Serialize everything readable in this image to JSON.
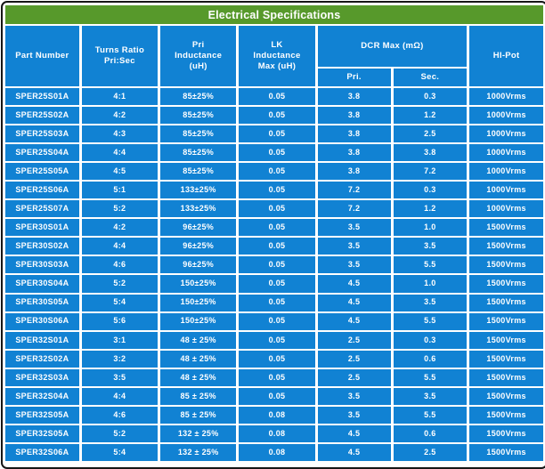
{
  "title": "Electrical Specifications",
  "colors": {
    "title_bg": "#57992b",
    "cell_bg": "#1182d3",
    "text": "#ffffff",
    "frame_border": "#161616",
    "gap": "#ffffff"
  },
  "table": {
    "headers": {
      "part_number": "Part Number",
      "turns_ratio": "Turns Ratio\nPri:Sec",
      "pri_inductance": "Pri\nInductance\n(uH)",
      "lk_inductance": "LK\nInductance\nMax (uH)",
      "dcr_max": "DCR Max (mΩ)",
      "dcr_pri": "Pri.",
      "dcr_sec": "Sec.",
      "hi_pot": "HI-Pot"
    },
    "rows": [
      {
        "part": "SPER25S01A",
        "ratio": "4:1",
        "pri_ind": "85±25%",
        "lk": "0.05",
        "dcr_pri": "3.8",
        "dcr_sec": "0.3",
        "hipot": "1000Vrms"
      },
      {
        "part": "SPER25S02A",
        "ratio": "4:2",
        "pri_ind": "85±25%",
        "lk": "0.05",
        "dcr_pri": "3.8",
        "dcr_sec": "1.2",
        "hipot": "1000Vrms"
      },
      {
        "part": "SPER25S03A",
        "ratio": "4:3",
        "pri_ind": "85±25%",
        "lk": "0.05",
        "dcr_pri": "3.8",
        "dcr_sec": "2.5",
        "hipot": "1000Vrms"
      },
      {
        "part": "SPER25S04A",
        "ratio": "4:4",
        "pri_ind": "85±25%",
        "lk": "0.05",
        "dcr_pri": "3.8",
        "dcr_sec": "3.8",
        "hipot": "1000Vrms"
      },
      {
        "part": "SPER25S05A",
        "ratio": "4:5",
        "pri_ind": "85±25%",
        "lk": "0.05",
        "dcr_pri": "3.8",
        "dcr_sec": "7.2",
        "hipot": "1000Vrms"
      },
      {
        "part": "SPER25S06A",
        "ratio": "5:1",
        "pri_ind": "133±25%",
        "lk": "0.05",
        "dcr_pri": "7.2",
        "dcr_sec": "0.3",
        "hipot": "1000Vrms"
      },
      {
        "part": "SPER25S07A",
        "ratio": "5:2",
        "pri_ind": "133±25%",
        "lk": "0.05",
        "dcr_pri": "7.2",
        "dcr_sec": "1.2",
        "hipot": "1000Vrms"
      },
      {
        "part": "SPER30S01A",
        "ratio": "4:2",
        "pri_ind": "96±25%",
        "lk": "0.05",
        "dcr_pri": "3.5",
        "dcr_sec": "1.0",
        "hipot": "1500Vrms"
      },
      {
        "part": "SPER30S02A",
        "ratio": "4:4",
        "pri_ind": "96±25%",
        "lk": "0.05",
        "dcr_pri": "3.5",
        "dcr_sec": "3.5",
        "hipot": "1500Vrms"
      },
      {
        "part": "SPER30S03A",
        "ratio": "4:6",
        "pri_ind": "96±25%",
        "lk": "0.05",
        "dcr_pri": "3.5",
        "dcr_sec": "5.5",
        "hipot": "1500Vrms"
      },
      {
        "part": "SPER30S04A",
        "ratio": "5:2",
        "pri_ind": "150±25%",
        "lk": "0.05",
        "dcr_pri": "4.5",
        "dcr_sec": "1.0",
        "hipot": "1500Vrms"
      },
      {
        "part": "SPER30S05A",
        "ratio": "5:4",
        "pri_ind": "150±25%",
        "lk": "0.05",
        "dcr_pri": "4.5",
        "dcr_sec": "3.5",
        "hipot": "1500Vrms"
      },
      {
        "part": "SPER30S06A",
        "ratio": "5:6",
        "pri_ind": "150±25%",
        "lk": "0.05",
        "dcr_pri": "4.5",
        "dcr_sec": "5.5",
        "hipot": "1500Vrms"
      },
      {
        "part": "SPER32S01A",
        "ratio": "3:1",
        "pri_ind": "48 ± 25%",
        "lk": "0.05",
        "dcr_pri": "2.5",
        "dcr_sec": "0.3",
        "hipot": "1500Vrms"
      },
      {
        "part": "SPER32S02A",
        "ratio": "3:2",
        "pri_ind": "48 ± 25%",
        "lk": "0.05",
        "dcr_pri": "2.5",
        "dcr_sec": "0.6",
        "hipot": "1500Vrms"
      },
      {
        "part": "SPER32S03A",
        "ratio": "3:5",
        "pri_ind": "48 ± 25%",
        "lk": "0.05",
        "dcr_pri": "2.5",
        "dcr_sec": "5.5",
        "hipot": "1500Vrms"
      },
      {
        "part": "SPER32S04A",
        "ratio": "4:4",
        "pri_ind": "85 ± 25%",
        "lk": "0.05",
        "dcr_pri": "3.5",
        "dcr_sec": "3.5",
        "hipot": "1500Vrms"
      },
      {
        "part": "SPER32S05A",
        "ratio": "4:6",
        "pri_ind": "85 ± 25%",
        "lk": "0.08",
        "dcr_pri": "3.5",
        "dcr_sec": "5.5",
        "hipot": "1500Vrms"
      },
      {
        "part": "SPER32S05A",
        "ratio": "5:2",
        "pri_ind": "132 ± 25%",
        "lk": "0.08",
        "dcr_pri": "4.5",
        "dcr_sec": "0.6",
        "hipot": "1500Vrms"
      },
      {
        "part": "SPER32S06A",
        "ratio": "5:4",
        "pri_ind": "132 ± 25%",
        "lk": "0.08",
        "dcr_pri": "4.5",
        "dcr_sec": "2.5",
        "hipot": "1500Vrms"
      }
    ]
  }
}
